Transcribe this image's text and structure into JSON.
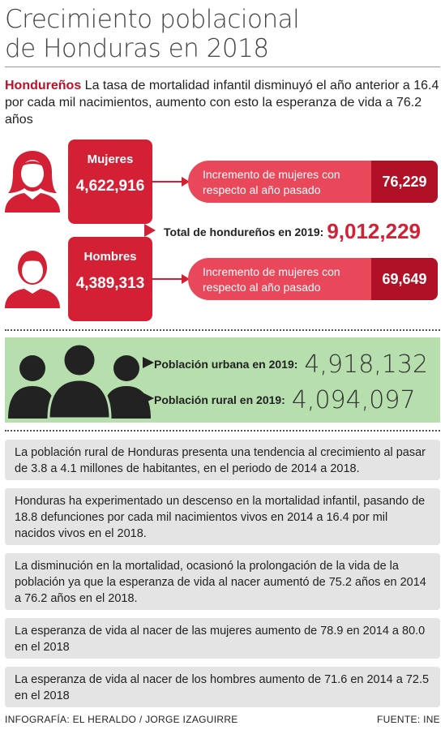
{
  "title_line1": "Crecimiento poblacional",
  "title_line2": "de Honduras en 2018",
  "intro": {
    "lead": "Hondureños",
    "text": " La tasa de mortalidad infantil disminuyó el año anterior a 16.4 por cada mil nacimientos, aumento con esto la esperanza de vida a 76.2 años"
  },
  "women": {
    "icon": "woman-icon",
    "label": "Mujeres",
    "value": "4,622,916",
    "increment_line1": "Incremento de mujeres con",
    "increment_line2": "respecto al año pasado",
    "increment_value": "76,229"
  },
  "total": {
    "label": "Total de hondureños en 2019:",
    "value": "9,012,229"
  },
  "men": {
    "icon": "man-icon",
    "label": "Hombres",
    "value": "4,389,313",
    "increment_line1": "Incremento de mujeres con",
    "increment_line2": "respecto al año pasado",
    "increment_value": "69,649"
  },
  "population": {
    "icon": "group-icon",
    "urban_label": "Población urbana en 2019:",
    "urban_value": "4,918,132",
    "rural_label": "Población rural en 2019:",
    "rural_value": "4,094,097"
  },
  "facts": [
    "La población rural de Honduras presenta una tendencia al crecimiento al pasar de 3.8 a 4.1 millones de habitantes, en el periodo de 2014 a 2018.",
    "Honduras ha experimentado un descenso en la mortalidad infantil, pasando de 18.8 defunciones por cada mil nacimientos vivos en 2014 a 16.4 por mil nacidos vivos en el 2018.",
    "La disminución en la mortalidad, ocasionó la prolongación de la vida de la población ya que la esperanza de vida al nacer aumentó de 75.2 años en 2014 a 76.2 años en el 2018.",
    "La esperanza de vida al nacer de las mujeres aumento de 78.9 en 2014 a 80.0 en el 2018",
    "La esperanza de vida al nacer de los hombres aumento de 71.6 en 2014 a 72.5 en el 2018"
  ],
  "footer": {
    "credit": "INFOGRAFÍA: EL HERALDO / JORGE IZAGUIRRE",
    "source": "FUENTE: INE"
  },
  "colors": {
    "red": "#d42035",
    "dark_red": "#b01126",
    "green": "#b7dfae"
  }
}
